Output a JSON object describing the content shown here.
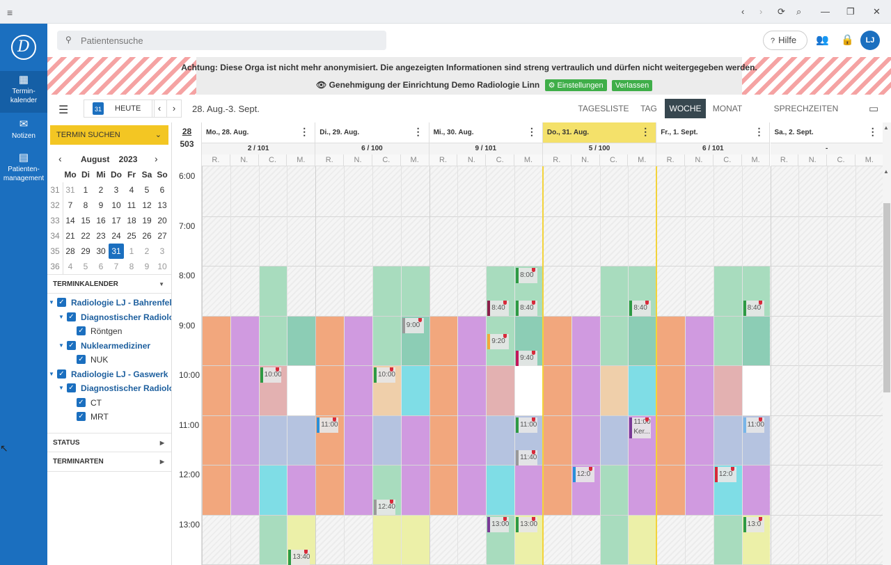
{
  "window": {
    "menu_icon": "hamburger-icon",
    "back": "‹",
    "forward": "›",
    "reload": "⟳",
    "search": "⌕",
    "minimize": "—",
    "maximize": "❐",
    "close": "✕"
  },
  "nav": {
    "items": [
      {
        "label": "Termin-\nkalender",
        "icon": "calendar-icon"
      },
      {
        "label": "Notizen",
        "icon": "mail-icon"
      },
      {
        "label": "Patienten-\nmanagement",
        "icon": "clipboard-icon"
      }
    ]
  },
  "topbar": {
    "search_placeholder": "Patientensuche",
    "help": "Hilfe",
    "avatar": "LJ"
  },
  "banner": {
    "line1": "Achtung: Diese Orga ist nicht mehr anonymisiert. Die angezeigten Informationen sind streng vertraulich und dürfen nicht weitergegeben werden.",
    "line2": "Genehmigung der Einrichtung Demo Radiologie Linn",
    "settings_btn": "Einstellungen",
    "leave_btn": "Verlassen"
  },
  "toolbar": {
    "today": "HEUTE",
    "cal_icon_text": "31",
    "range": "28. Aug.-3. Sept.",
    "views": [
      "TAGESLISTE",
      "TAG",
      "WOCHE",
      "MONAT",
      "SPRECHZEITEN ÄNDERN"
    ],
    "active_view": "WOCHE"
  },
  "sidebar": {
    "search_btn": "TERMIN SUCHEN",
    "month": "August",
    "year": "2023",
    "weekdays": [
      "Mo",
      "Di",
      "Mi",
      "Do",
      "Fr",
      "Sa",
      "So"
    ],
    "weeks": [
      [
        "31",
        "31",
        "1",
        "2",
        "3",
        "4",
        "5",
        "6"
      ],
      [
        "32",
        "7",
        "8",
        "9",
        "10",
        "11",
        "12",
        "13"
      ],
      [
        "33",
        "14",
        "15",
        "16",
        "17",
        "18",
        "19",
        "20"
      ],
      [
        "34",
        "21",
        "22",
        "23",
        "24",
        "25",
        "26",
        "27"
      ],
      [
        "35",
        "28",
        "29",
        "30",
        "31",
        "1",
        "2",
        "3"
      ],
      [
        "36",
        "4",
        "5",
        "6",
        "7",
        "8",
        "9",
        "10"
      ]
    ],
    "selected_day": "31",
    "terminkalender": "TERMINKALENDER",
    "tree": [
      {
        "label": "Radiologie LJ - Bahrenfeld",
        "level": 0
      },
      {
        "label": "Diagnostischer Radiologe",
        "level": 1
      },
      {
        "label": "Röntgen",
        "level": 2
      },
      {
        "label": "Nuklearmediziner",
        "level": 1
      },
      {
        "label": "NUK",
        "level": 2
      },
      {
        "label": "Radiologie LJ - Gaswerk",
        "level": 0
      },
      {
        "label": "Diagnostischer Radiologe",
        "level": 1
      },
      {
        "label": "CT",
        "level": 2
      },
      {
        "label": "MRT",
        "level": 2
      }
    ],
    "status": "STATUS",
    "terminarten": "TERMINARTEN"
  },
  "calendar": {
    "date_top": "28",
    "date_count": "503",
    "days": [
      {
        "name": "Mo., 28. Aug.",
        "count": "2 / 101"
      },
      {
        "name": "Di., 29. Aug.",
        "count": "6 / 100"
      },
      {
        "name": "Mi., 30. Aug.",
        "count": "9 / 101"
      },
      {
        "name": "Do., 31. Aug.",
        "count": "5 / 100",
        "today": true
      },
      {
        "name": "Fr., 1. Sept.",
        "count": "6 / 101"
      },
      {
        "name": "Sa., 2. Sept.",
        "count": "-"
      }
    ],
    "resources": [
      "R.",
      "N.",
      "C.",
      "M."
    ],
    "hours": [
      "6:00",
      "7:00",
      "8:00",
      "9:00",
      "10:00",
      "11:00",
      "12:00",
      "13:00"
    ],
    "appointments": [
      {
        "day": 0,
        "res": 2,
        "time": "10:00",
        "hour": 10.0
      },
      {
        "day": 0,
        "res": 3,
        "time": "13:40",
        "hour": 13.66
      },
      {
        "day": 1,
        "res": 0,
        "time": "11:00",
        "hour": 11.0,
        "color": "#2a8fd8"
      },
      {
        "day": 1,
        "res": 2,
        "time": "10:00",
        "hour": 10.0
      },
      {
        "day": 1,
        "res": 2,
        "time": "12:40",
        "hour": 12.66,
        "color": "#999999"
      },
      {
        "day": 1,
        "res": 3,
        "time": "9:00",
        "hour": 9.0,
        "color": "#999999"
      },
      {
        "day": 2,
        "res": 2,
        "time": "8:40",
        "hour": 8.66,
        "color": "#8a1f4a"
      },
      {
        "day": 2,
        "res": 2,
        "time": "9:20",
        "hour": 9.33,
        "color": "#f3a93a"
      },
      {
        "day": 2,
        "res": 2,
        "time": "13:00",
        "hour": 13.0,
        "color": "#7a3a97"
      },
      {
        "day": 2,
        "res": 3,
        "time": "8:00",
        "hour": 8.0
      },
      {
        "day": 2,
        "res": 3,
        "time": "8:40",
        "hour": 8.66
      },
      {
        "day": 2,
        "res": 3,
        "time": "9:40",
        "hour": 9.66,
        "color": "#c2185b"
      },
      {
        "day": 2,
        "res": 3,
        "time": "11:00",
        "hour": 11.0
      },
      {
        "day": 2,
        "res": 3,
        "time": "11:40",
        "hour": 11.66,
        "color": "#999999"
      },
      {
        "day": 2,
        "res": 3,
        "time": "13:00",
        "hour": 13.0
      },
      {
        "day": 3,
        "res": 1,
        "time": "12:0",
        "hour": 12.0,
        "color": "#2a8fd8"
      },
      {
        "day": 3,
        "res": 3,
        "time": "8:40",
        "hour": 8.66
      },
      {
        "day": 4,
        "res": 2,
        "time": "12:0",
        "hour": 12.0,
        "color": "#d72a3a"
      },
      {
        "day": 4,
        "res": 3,
        "time": "8:40",
        "hour": 8.66
      },
      {
        "day": 4,
        "res": 3,
        "time": "11:00",
        "hour": 11.0,
        "color": "#79b6e8"
      },
      {
        "day": 4,
        "res": 3,
        "time": "13:0",
        "hour": 13.0
      }
    ],
    "appt_named": {
      "day": 3,
      "res": 3,
      "time": "11:00",
      "name": "Ker...",
      "hour": 11.0
    }
  }
}
